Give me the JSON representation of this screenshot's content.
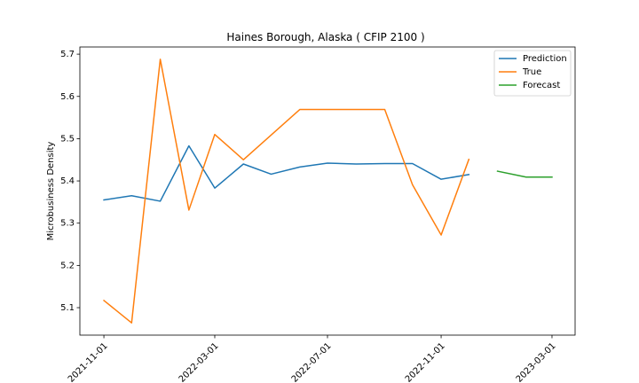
{
  "chart_data": {
    "type": "line",
    "title": "Haines Borough, Alaska ( CFIP 2100 )",
    "xlabel": "",
    "ylabel": "Microbusiness Density",
    "x_ticks": [
      "2021-11-01",
      "2022-03-01",
      "2022-07-01",
      "2022-11-01",
      "2023-03-01"
    ],
    "y_ticks": [
      5.1,
      5.2,
      5.3,
      5.4,
      5.5,
      5.6,
      5.7
    ],
    "xlim": [
      "2021-10-06",
      "2023-03-26"
    ],
    "ylim": [
      5.035,
      5.717
    ],
    "grid": false,
    "legend_position": "top-right",
    "series": [
      {
        "name": "Prediction",
        "color": "#1f77b4",
        "points": [
          {
            "x": "2021-11-01",
            "y": 5.355
          },
          {
            "x": "2021-12-01",
            "y": 5.365
          },
          {
            "x": "2022-01-01",
            "y": 5.352
          },
          {
            "x": "2022-02-01",
            "y": 5.483
          },
          {
            "x": "2022-03-01",
            "y": 5.383
          },
          {
            "x": "2022-04-01",
            "y": 5.44
          },
          {
            "x": "2022-05-01",
            "y": 5.416
          },
          {
            "x": "2022-06-01",
            "y": 5.433
          },
          {
            "x": "2022-07-01",
            "y": 5.442
          },
          {
            "x": "2022-08-01",
            "y": 5.44
          },
          {
            "x": "2022-09-01",
            "y": 5.441
          },
          {
            "x": "2022-10-01",
            "y": 5.441
          },
          {
            "x": "2022-11-01",
            "y": 5.404
          },
          {
            "x": "2022-12-01",
            "y": 5.415
          }
        ]
      },
      {
        "name": "True",
        "color": "#ff7f0e",
        "points": [
          {
            "x": "2021-11-01",
            "y": 5.117
          },
          {
            "x": "2021-12-01",
            "y": 5.064
          },
          {
            "x": "2022-01-01",
            "y": 5.688
          },
          {
            "x": "2022-02-01",
            "y": 5.331
          },
          {
            "x": "2022-03-01",
            "y": 5.51
          },
          {
            "x": "2022-04-01",
            "y": 5.45
          },
          {
            "x": "2022-06-01",
            "y": 5.569
          },
          {
            "x": "2022-07-01",
            "y": 5.569
          },
          {
            "x": "2022-09-01",
            "y": 5.569
          },
          {
            "x": "2022-10-01",
            "y": 5.391
          },
          {
            "x": "2022-11-01",
            "y": 5.272
          },
          {
            "x": "2022-12-01",
            "y": 5.451
          }
        ]
      },
      {
        "name": "Forecast",
        "color": "#2ca02c",
        "points": [
          {
            "x": "2023-01-01",
            "y": 5.423
          },
          {
            "x": "2023-02-01",
            "y": 5.409
          },
          {
            "x": "2023-03-01",
            "y": 5.409
          }
        ]
      }
    ]
  }
}
